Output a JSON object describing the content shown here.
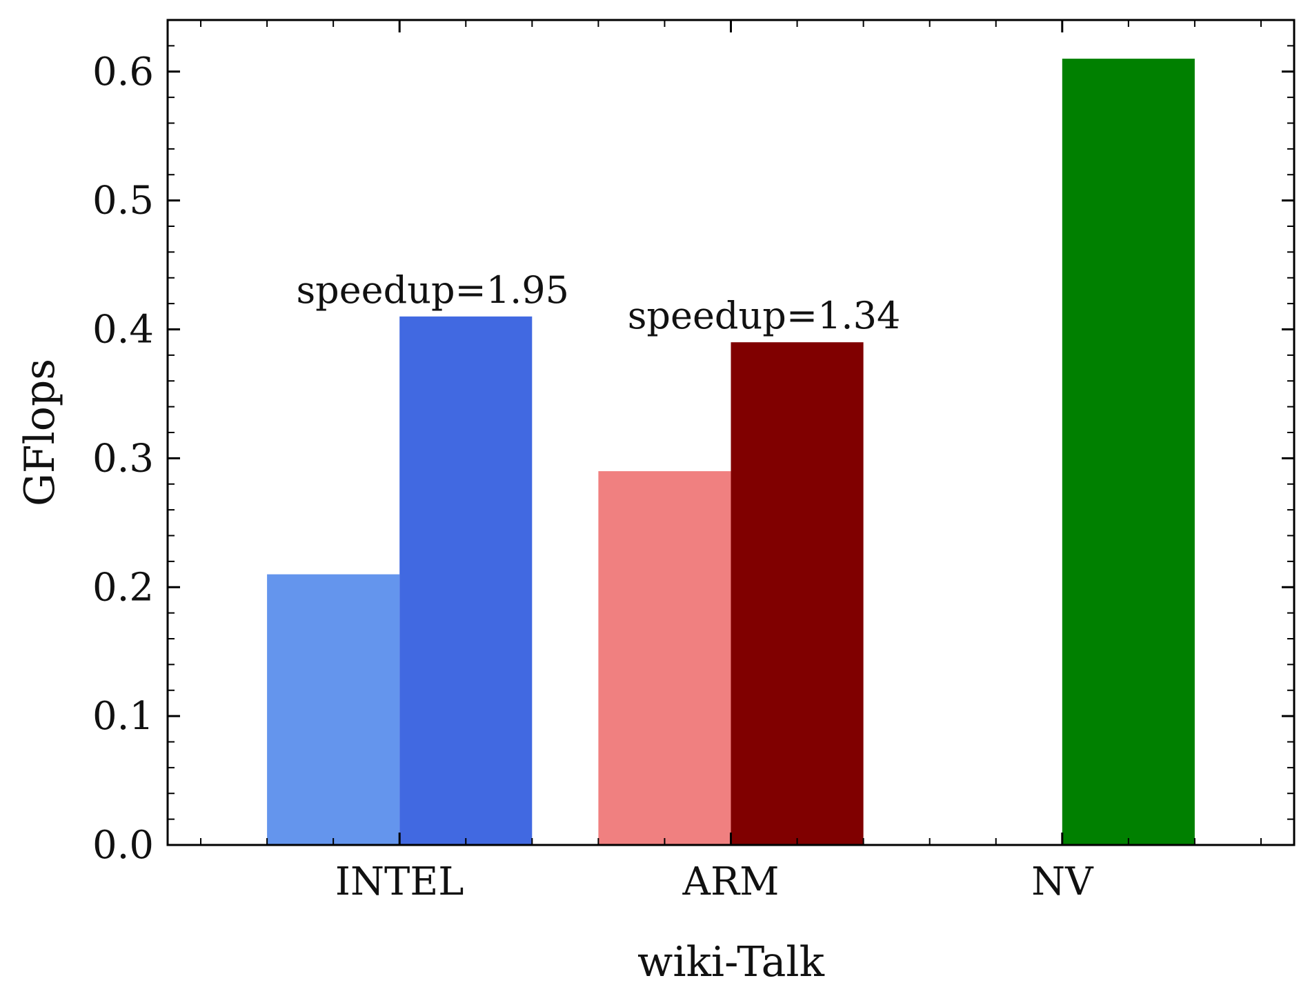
{
  "chart_data": {
    "type": "bar",
    "xlabel": "wiki-Talk",
    "ylabel": "GFlops",
    "ylim": [
      0.0,
      0.64
    ],
    "yticks": [
      "0.0",
      "0.1",
      "0.2",
      "0.3",
      "0.4",
      "0.5",
      "0.6"
    ],
    "yticks_values": [
      0.0,
      0.1,
      0.2,
      0.3,
      0.4,
      0.5,
      0.6
    ],
    "categories": [
      "INTEL",
      "ARM",
      "NV"
    ],
    "bars": [
      {
        "group": "INTEL",
        "slot": 0,
        "value": 0.21,
        "color": "#6495ED"
      },
      {
        "group": "INTEL",
        "slot": 1,
        "value": 0.41,
        "color": "#4169E1"
      },
      {
        "group": "ARM",
        "slot": 0,
        "value": 0.29,
        "color": "#F08080"
      },
      {
        "group": "ARM",
        "slot": 1,
        "value": 0.39,
        "color": "#800000"
      },
      {
        "group": "NV",
        "slot": 1,
        "value": 0.61,
        "color": "#008000"
      }
    ],
    "annotations": [
      {
        "group": "INTEL",
        "text": "speedup=1.95",
        "value": 0.41
      },
      {
        "group": "ARM",
        "text": "speedup=1.34",
        "value": 0.39
      }
    ],
    "grid": false,
    "legend": "none"
  }
}
